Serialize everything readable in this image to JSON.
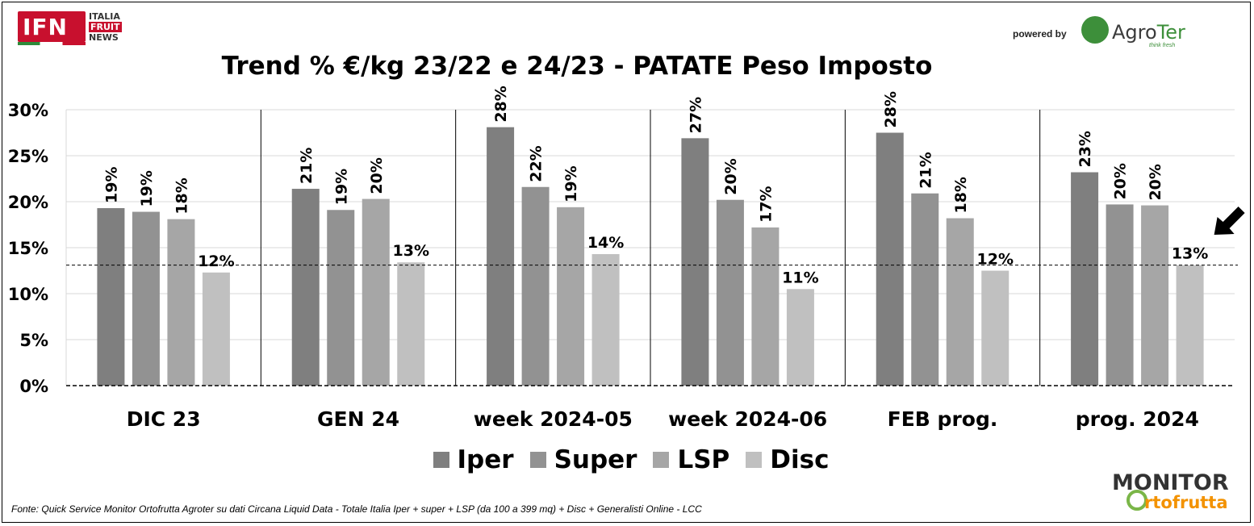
{
  "header": {
    "logo_ifn": {
      "mark": "IFN",
      "words": [
        "ITALIA",
        "FRUIT",
        "NEWS"
      ]
    },
    "powered_by": "powered by",
    "logo_agroter": {
      "name_a": "Agro",
      "name_b": "Ter",
      "tagline": "think fresh"
    }
  },
  "footer": {
    "source": "Fonte: Quick Service Monitor Ortofrutta Agroter su dati Circana Liquid Data - Totale Italia Iper + super + LSP (da 100 a 399 mq) + Disc + Generalisti Online - LCC",
    "logo_monitor": {
      "top": "MONITOR",
      "bottom": "rtofrutta"
    }
  },
  "colors": {
    "Iper": "#7f7f7f",
    "Super": "#929292",
    "LSP": "#a6a6a6",
    "Disc": "#c0c0c0",
    "arrow": "#000000"
  },
  "chart_data": {
    "type": "bar",
    "title": "Trend % €/kg 23/22 e 24/23 - PATATE Peso Imposto",
    "xlabel": "",
    "ylabel": "",
    "ylim": [
      0,
      30
    ],
    "yticks": [
      "0%",
      "5%",
      "10%",
      "15%",
      "20%",
      "25%",
      "30%"
    ],
    "grid": true,
    "legend_position": "bottom",
    "reference_line": 13.1,
    "highlight_arrow_on": "prog. 2024 - Disc",
    "categories": [
      "DIC 23",
      "GEN 24",
      "week 2024-05",
      "week 2024-06",
      "FEB prog.",
      "prog. 2024"
    ],
    "series": [
      {
        "name": "Iper",
        "values": [
          19.3,
          21.4,
          28.1,
          26.9,
          27.5,
          23.2
        ],
        "labels": [
          "19%",
          "21%",
          "28%",
          "27%",
          "28%",
          "23%"
        ]
      },
      {
        "name": "Super",
        "values": [
          18.9,
          19.1,
          21.6,
          20.2,
          20.9,
          19.7
        ],
        "labels": [
          "19%",
          "19%",
          "22%",
          "20%",
          "21%",
          "20%"
        ]
      },
      {
        "name": "LSP",
        "values": [
          18.1,
          20.3,
          19.4,
          17.2,
          18.2,
          19.6
        ],
        "labels": [
          "18%",
          "20%",
          "19%",
          "17%",
          "18%",
          "20%"
        ]
      },
      {
        "name": "Disc",
        "values": [
          12.3,
          13.4,
          14.3,
          10.5,
          12.5,
          13.1
        ],
        "labels": [
          "12%",
          "13%",
          "14%",
          "11%",
          "12%",
          "13%"
        ]
      }
    ]
  }
}
